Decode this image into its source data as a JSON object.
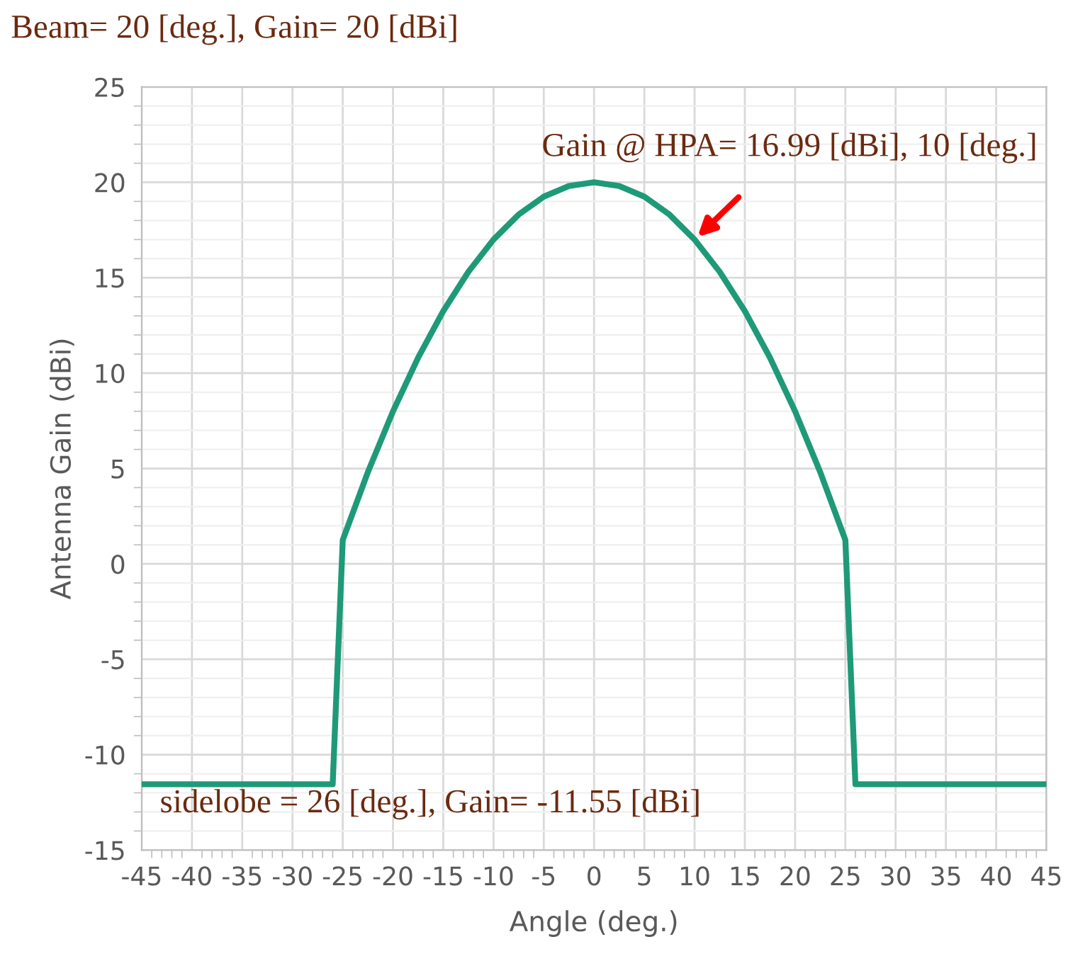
{
  "chart_data": {
    "type": "line",
    "title": "Beam= 20 [deg.], Gain= 20 [dBi]",
    "xlabel": "Angle (deg.)",
    "ylabel": "Antenna Gain (dBi)",
    "series": [
      {
        "color": "#1f9a78",
        "x": [
          -45,
          -26,
          -25,
          -22.5,
          -20,
          -17.5,
          -15,
          -12.5,
          -10,
          -7.5,
          -5,
          -2.5,
          0,
          2.5,
          5,
          7.5,
          10,
          12.5,
          15,
          17.5,
          20,
          22.5,
          25,
          26,
          45
        ],
        "values": [
          -11.55,
          -11.55,
          1.25,
          4.81,
          8.0,
          10.81,
          13.25,
          15.31,
          17.0,
          18.31,
          19.25,
          19.81,
          20.0,
          19.81,
          19.25,
          18.31,
          17.0,
          15.31,
          13.25,
          10.81,
          8.0,
          4.81,
          1.25,
          -11.55,
          -11.55
        ]
      }
    ],
    "annotations": [
      {
        "text": "Gain @ HPA= 16.99 [dBi], 10 [deg.]",
        "x": 10,
        "y": 16.99
      },
      "sidelobe = 26 [deg.], Gain= -11.55 [dBi]"
    ],
    "xlim": [
      -45,
      45
    ],
    "xticks": [
      -45,
      -40,
      -35,
      -30,
      -25,
      -20,
      -15,
      -10,
      -5,
      0,
      5,
      10,
      15,
      20,
      25,
      30,
      35,
      40,
      45
    ],
    "ylim": [
      -15,
      25
    ],
    "yticks": [
      -15,
      -10,
      -5,
      0,
      5,
      10,
      15,
      20,
      25
    ],
    "grid": true,
    "marker": "none",
    "line_style": "solid"
  }
}
